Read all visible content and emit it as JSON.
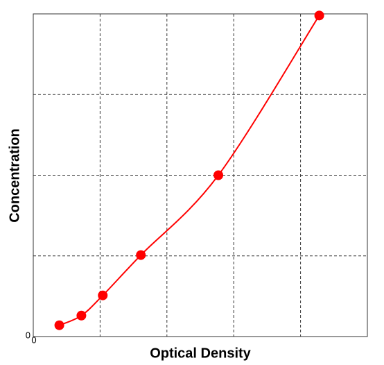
{
  "chart_data": {
    "type": "scatter",
    "x_label": "Optical Density",
    "y_label": "Concentration",
    "xlim": [
      0,
      5
    ],
    "ylim": [
      0,
      4
    ],
    "xticks": [
      0
    ],
    "yticks": [
      0
    ],
    "xgrid": [
      1,
      2,
      3,
      4
    ],
    "ygrid": [
      1,
      2,
      3
    ],
    "series": [
      {
        "color": "#ff0000",
        "x": [
          0.39,
          0.72,
          1.04,
          1.61,
          2.77,
          4.28
        ],
        "values": [
          0.14,
          0.26,
          0.51,
          1.01,
          2.0,
          3.98
        ]
      }
    ]
  }
}
